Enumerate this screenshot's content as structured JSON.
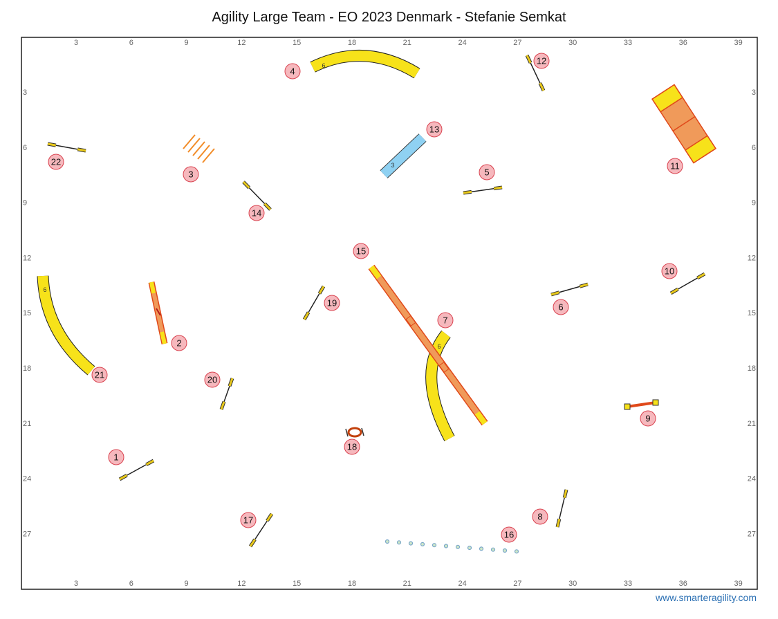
{
  "title": "Agility Large Team - EO 2023 Denmark - Stefanie Semkat",
  "footer": "www.smarteragility.com",
  "colors": {
    "jump_bar": "#e8c81a",
    "tunnel": "#f7e21a",
    "tunnel_blue": "#8fd1f2",
    "contact_orange": "#f09a5a",
    "contact_red": "#e0491a",
    "number_fill": "#f6b8bd",
    "number_stroke": "#d9424f",
    "weaves": "#7aa7c9"
  },
  "axes": {
    "x_ticks": [
      "3",
      "6",
      "9",
      "12",
      "15",
      "18",
      "21",
      "24",
      "27",
      "30",
      "33",
      "36",
      "39"
    ],
    "y_ticks": [
      "3",
      "6",
      "9",
      "12",
      "15",
      "18",
      "21",
      "24",
      "27"
    ]
  },
  "obstacle_labels": [
    "1",
    "2",
    "3",
    "4",
    "5",
    "6",
    "7",
    "8",
    "9",
    "10",
    "11",
    "12",
    "13",
    "14",
    "15",
    "16",
    "17",
    "18",
    "19",
    "20",
    "21",
    "22"
  ],
  "tunnel_labels": {
    "t4": "6",
    "t7": "6",
    "t13": "3",
    "t21": "6"
  }
}
